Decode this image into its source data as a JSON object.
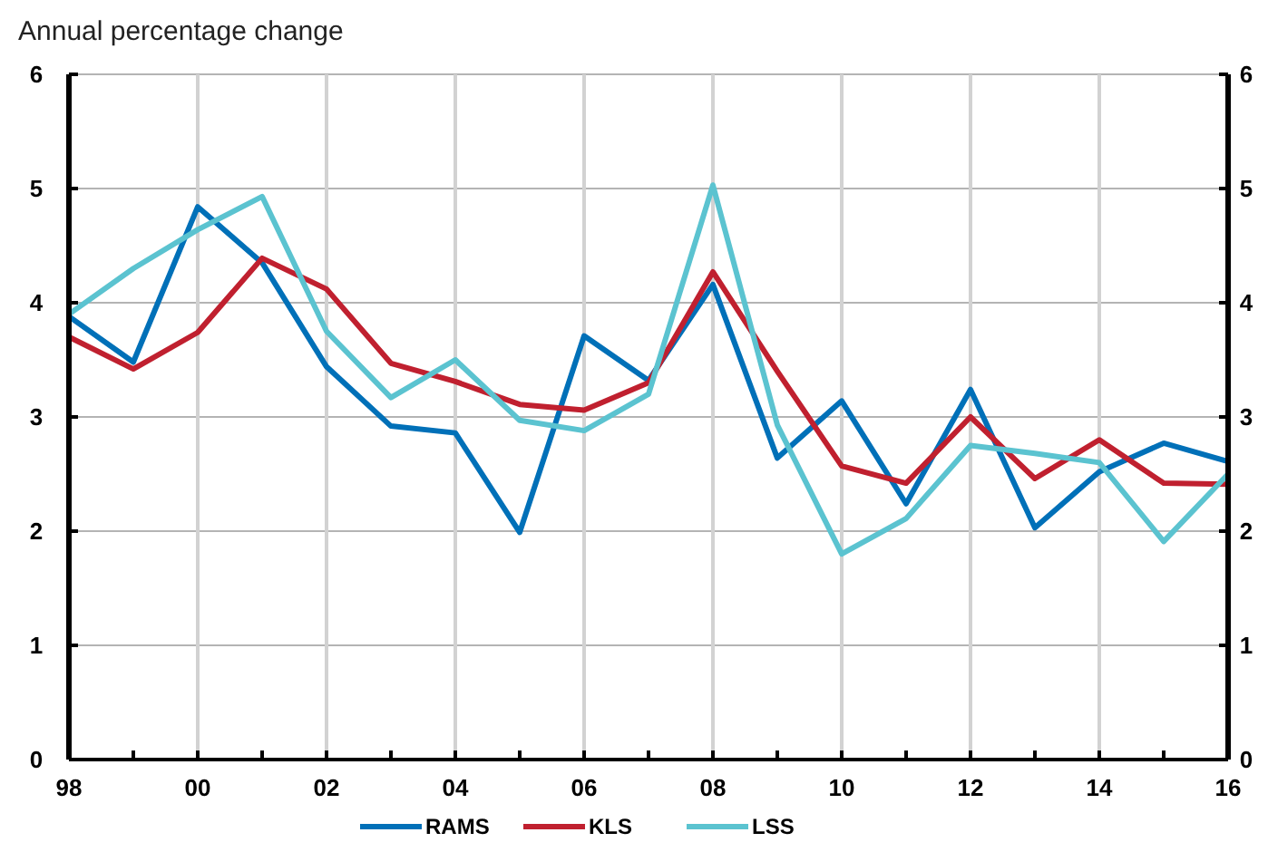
{
  "chart_data": {
    "type": "line",
    "ylabel": "Annual percentage change",
    "categories": [
      "98",
      null,
      "00",
      null,
      "02",
      null,
      "04",
      null,
      "06",
      null,
      "08",
      null,
      "10",
      null,
      "12",
      null,
      "14",
      null,
      "16"
    ],
    "series": [
      {
        "name": "RAMS",
        "color": "#0070b8",
        "values": [
          3.88,
          3.48,
          4.84,
          4.35,
          3.44,
          2.92,
          2.86,
          1.99,
          3.71,
          3.32,
          4.16,
          2.64,
          3.14,
          2.24,
          3.24,
          2.03,
          2.52,
          2.77,
          2.61
        ]
      },
      {
        "name": "KLS",
        "color": "#c0202f",
        "values": [
          3.7,
          3.42,
          3.74,
          4.39,
          4.12,
          3.47,
          3.31,
          3.11,
          3.06,
          3.3,
          4.27,
          3.4,
          2.57,
          2.42,
          3.0,
          2.46,
          2.8,
          2.42,
          2.41
        ]
      },
      {
        "name": "LSS",
        "color": "#5bc3d0",
        "values": [
          3.9,
          4.3,
          4.64,
          4.93,
          3.75,
          3.17,
          3.5,
          2.97,
          2.88,
          3.2,
          5.03,
          2.93,
          1.8,
          2.11,
          2.75,
          2.68,
          2.6,
          1.91,
          2.5
        ]
      }
    ],
    "ylim": [
      0,
      6
    ],
    "yticks": [
      0,
      1,
      2,
      3,
      4,
      5,
      6
    ],
    "y2lim": [
      0,
      6
    ],
    "y2ticks": [
      0,
      1,
      2,
      3,
      4,
      5,
      6
    ],
    "grid": true,
    "legend": "bottom",
    "marker": "none",
    "line_style": "solid"
  }
}
